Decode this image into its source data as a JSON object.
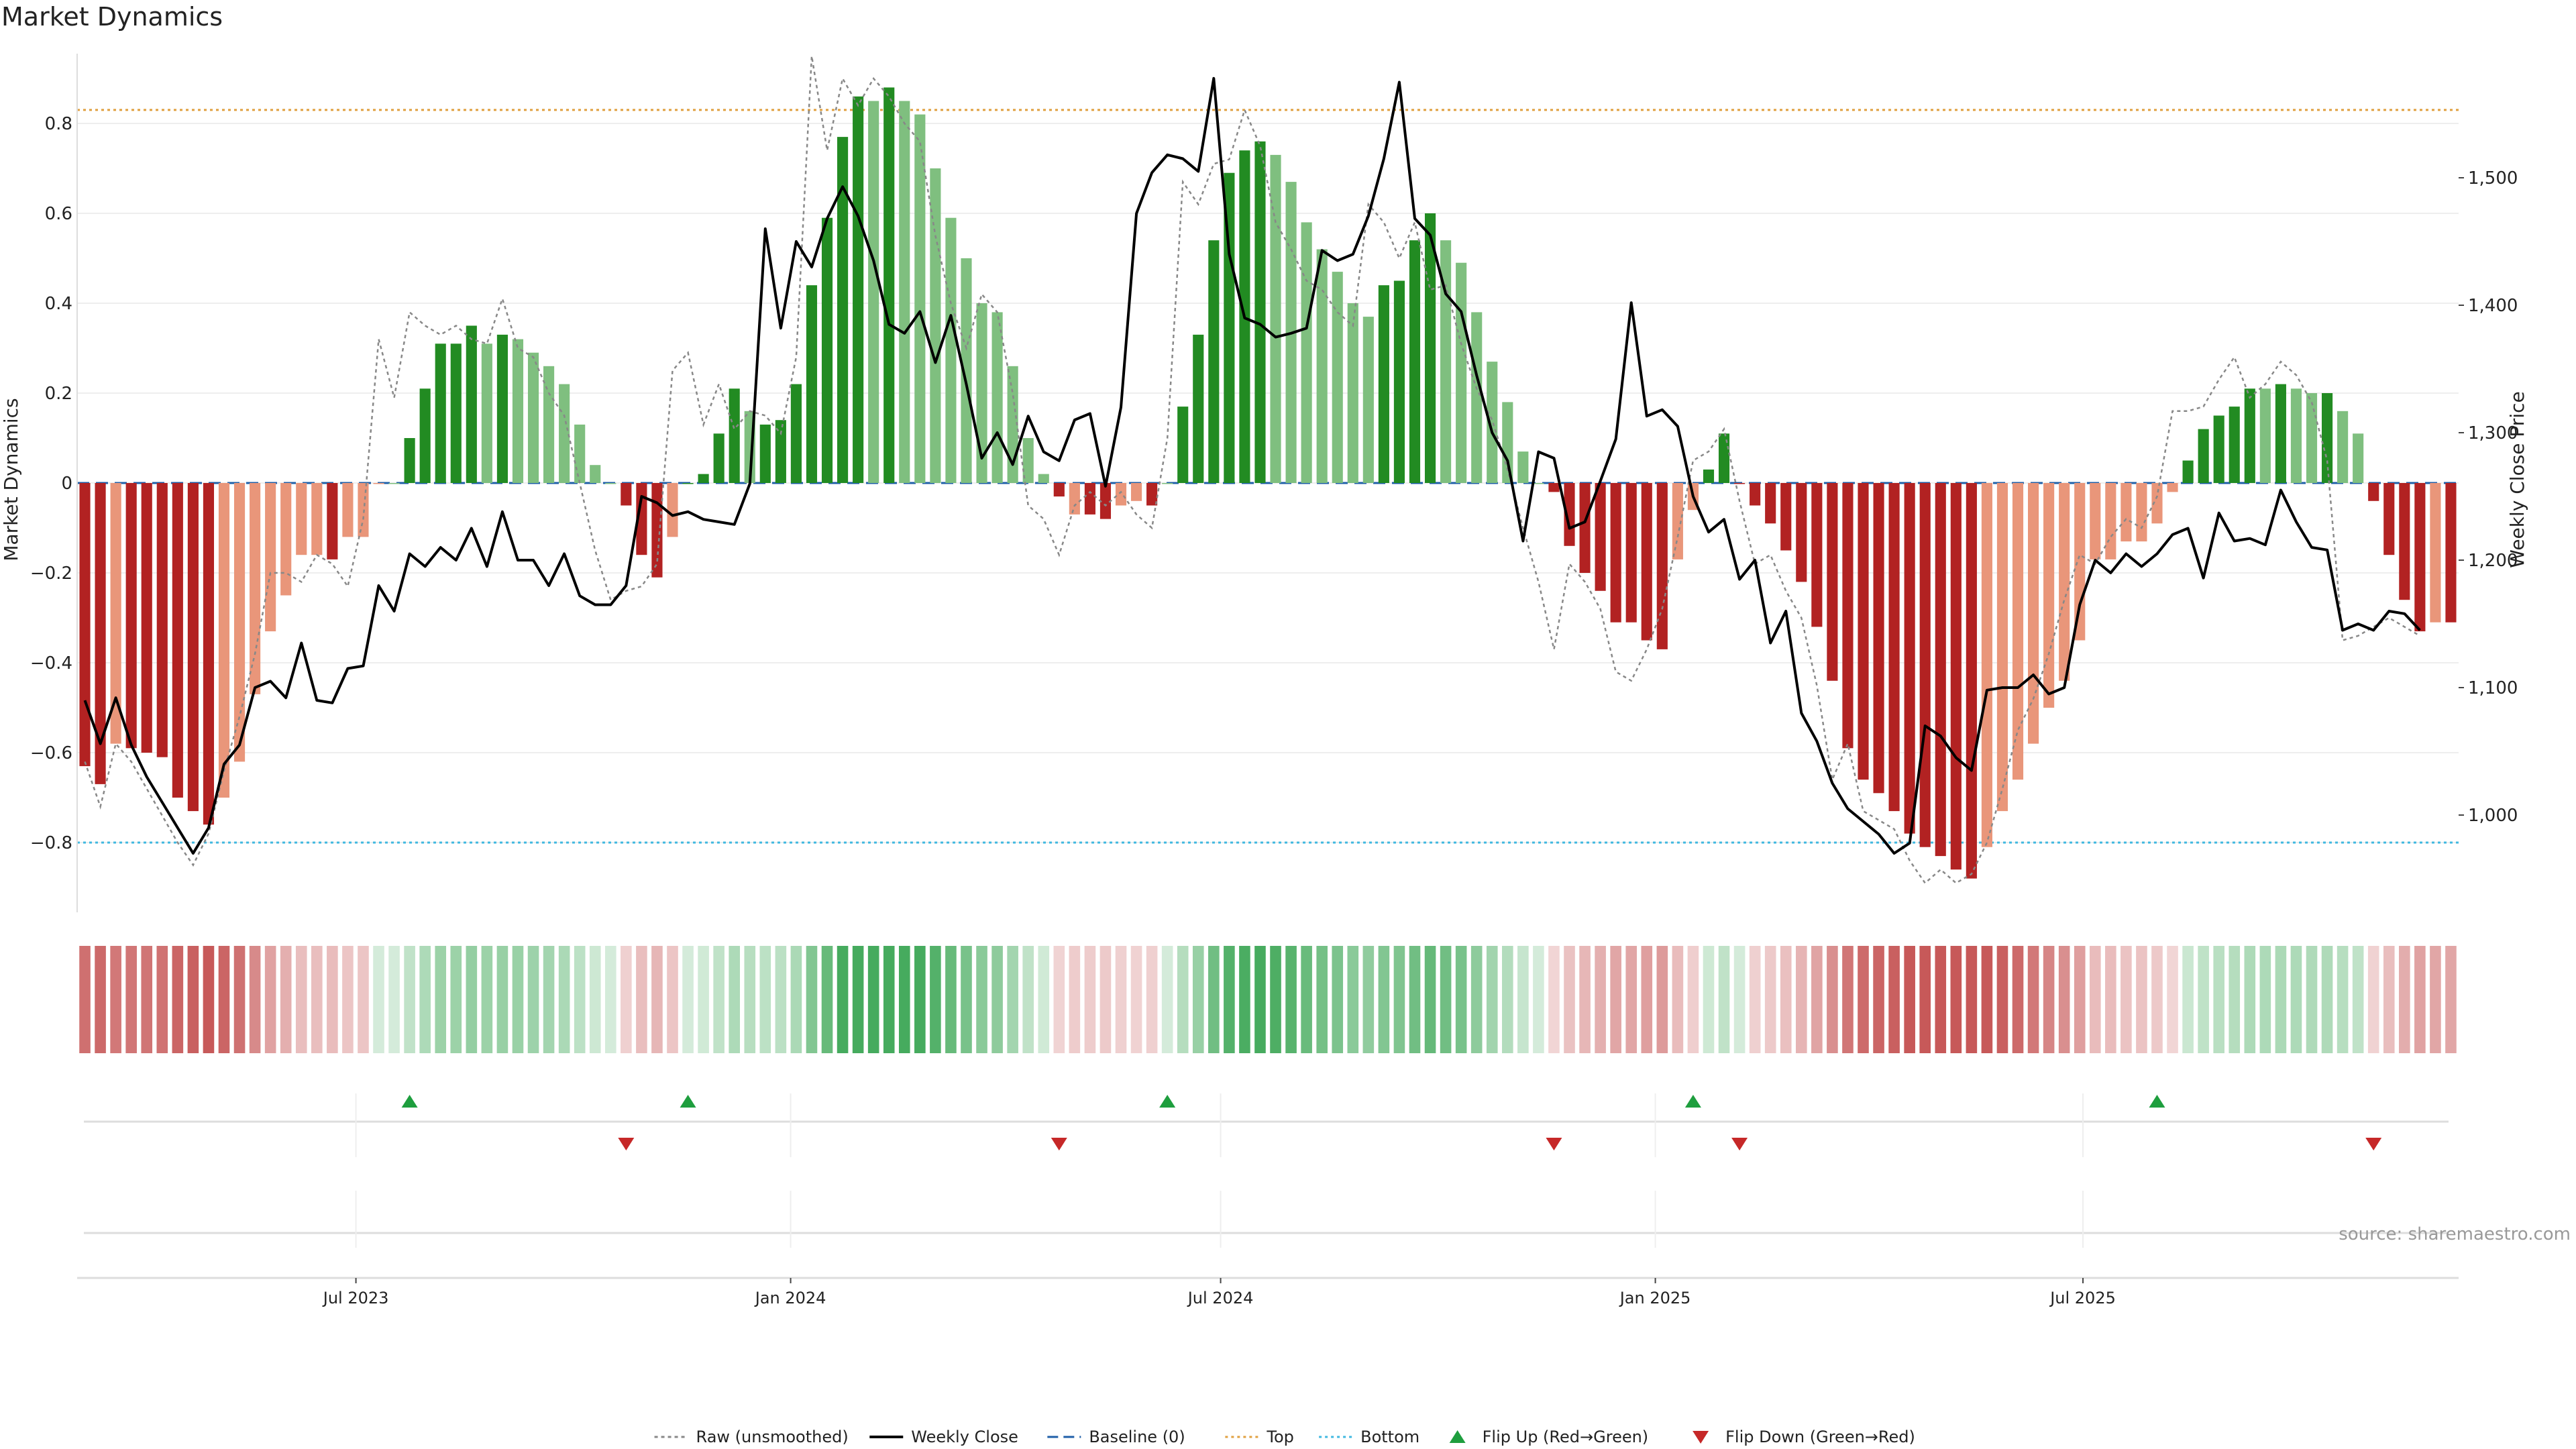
{
  "chart_data": {
    "type": "bar",
    "title": "Market Dynamics",
    "ylabel": "Market Dynamics",
    "y2label": "Weekly Close Price",
    "source": "source: sharemaestro.com",
    "ylim": [
      -0.96,
      0.96
    ],
    "y2lim": [
      940,
      1600
    ],
    "yticks": [
      -0.8,
      -0.6,
      -0.4,
      -0.2,
      0,
      0.2,
      0.4,
      0.6,
      0.8
    ],
    "ytick_labels": [
      "−0.8",
      "−0.6",
      "−0.4",
      "−0.2",
      "0",
      "0.2",
      "0.4",
      "0.6",
      "0.8"
    ],
    "y2ticks": [
      1000,
      1100,
      1200,
      1300,
      1400,
      1500
    ],
    "y2tick_labels": [
      "1,000",
      "1,100",
      "1,200",
      "1,300",
      "1,400",
      "1,500"
    ],
    "x_start_date": "2023-03-05",
    "x_end_date": "2025-12-07",
    "x_ticks": [
      {
        "date": "2023-07-01",
        "label": "Jul 2023"
      },
      {
        "date": "2024-01-01",
        "label": "Jan 2024"
      },
      {
        "date": "2024-07-01",
        "label": "Jul 2024"
      },
      {
        "date": "2025-01-01",
        "label": "Jan 2025"
      },
      {
        "date": "2025-07-01",
        "label": "Jul 2025"
      }
    ],
    "top_level": 0.83,
    "bottom_level": -0.8,
    "grid": true,
    "legend_position": "bottom-center",
    "colors": {
      "strong_up": "#228b22",
      "weak_up": "#7fbf7f",
      "strong_down": "#b22222",
      "weak_down": "#e9967a",
      "close": "#000000",
      "raw": "#888888",
      "baseline": "#1f5fa8",
      "top": "#e0a040",
      "bottom": "#40b8e0",
      "flip_up": "#1e9e3e",
      "flip_down": "#c62828"
    },
    "state_codes": "SD = strong down, WD = weak down, SU = strong up, WU = weak up",
    "series": [
      {
        "name": "Market Dynamics",
        "values": [
          -0.63,
          -0.67,
          -0.58,
          -0.59,
          -0.6,
          -0.61,
          -0.7,
          -0.73,
          -0.76,
          -0.7,
          -0.62,
          -0.47,
          -0.33,
          -0.25,
          -0.16,
          -0.16,
          -0.17,
          -0.12,
          -0.12,
          0,
          0.0,
          0.1,
          0.21,
          0.31,
          0.31,
          0.35,
          0.31,
          0.33,
          0.32,
          0.29,
          0.26,
          0.22,
          0.13,
          0.04,
          0.0,
          -0.05,
          -0.16,
          -0.21,
          -0.12,
          0.0,
          0.02,
          0.11,
          0.21,
          0.16,
          0.13,
          0.14,
          0.22,
          0.44,
          0.59,
          0.77,
          0.86,
          0.85,
          0.88,
          0.85,
          0.82,
          0.7,
          0.59,
          0.5,
          0.4,
          0.38,
          0.26,
          0.1,
          0.02,
          -0.03,
          -0.07,
          -0.07,
          -0.08,
          -0.05,
          -0.04,
          -0.05,
          0.0,
          0.17,
          0.33,
          0.54,
          0.69,
          0.74,
          0.76,
          0.73,
          0.67,
          0.58,
          0.52,
          0.47,
          0.4,
          0.37,
          0.44,
          0.45,
          0.54,
          0.6,
          0.54,
          0.49,
          0.38,
          0.27,
          0.18,
          0.07,
          0.0,
          -0.02,
          -0.14,
          -0.2,
          -0.24,
          -0.31,
          -0.31,
          -0.35,
          -0.37,
          -0.17,
          -0.06,
          0.03,
          0.11,
          0.0,
          -0.05,
          -0.09,
          -0.15,
          -0.22,
          -0.32,
          -0.44,
          -0.59,
          -0.66,
          -0.69,
          -0.73,
          -0.78,
          -0.81,
          -0.83,
          -0.86,
          -0.88,
          -0.81,
          -0.73,
          -0.66,
          -0.58,
          -0.5,
          -0.44,
          -0.35,
          -0.17,
          -0.17,
          -0.13,
          -0.13,
          -0.09,
          -0.02,
          0.05,
          0.12,
          0.15,
          0.17,
          0.21,
          0.21,
          0.22,
          0.21,
          0.2,
          0.2,
          0.16,
          0.11,
          -0.04,
          -0.16,
          -0.26,
          -0.33,
          -0.31,
          -0.31
        ],
        "states": "SD,SD,WD,SD,SD,SD,SD,SD,SD,WD,WD,WD,WD,WD,WD,WD,SD,WD,WD,WD,WU,SU,SU,SU,SU,SU,WU,SU,WU,WU,WU,WU,WU,WU,WU,SD,SD,SD,WD,SU,SU,SU,SU,WU,SU,SU,SU,SU,SU,SU,SU,WU,SU,WU,WU,WU,WU,WU,WU,WU,WU,WU,WU,SD,WD,SD,SD,WD,WD,SD,WU,SU,SU,SU,SU,SU,SU,WU,WU,WU,WU,WU,WU,WU,SU,SU,SU,SU,WU,WU,WU,WU,WU,WU,WU,SD,SD,SD,SD,SD,SD,SD,SD,WD,WD,SU,SU,SD,SD,SD,SD,SD,SD,SD,SD,SD,SD,SD,SD,SD,SD,SD,SD,WD,WD,WD,WD,WD,WD,WD,WD,WD,WD,WD,WD,WD,SU,SU,SU,SU,SU,WU,SU,WU,WU,SU,WU,WU,SD,SD,SD,SD,WD,SD"
      },
      {
        "name": "Raw (unsmoothed)",
        "values": [
          -0.62,
          -0.72,
          -0.58,
          -0.62,
          -0.68,
          -0.74,
          -0.8,
          -0.85,
          -0.78,
          -0.64,
          -0.52,
          -0.38,
          -0.2,
          -0.2,
          -0.22,
          -0.16,
          -0.18,
          -0.23,
          -0.08,
          0.32,
          0.19,
          0.38,
          0.35,
          0.33,
          0.35,
          0.32,
          0.31,
          0.41,
          0.3,
          0.28,
          0.2,
          0.15,
          0.0,
          -0.15,
          -0.26,
          -0.24,
          -0.23,
          -0.18,
          0.25,
          0.29,
          0.13,
          0.22,
          0.12,
          0.16,
          0.15,
          0.11,
          0.28,
          0.95,
          0.74,
          0.9,
          0.84,
          0.9,
          0.86,
          0.8,
          0.76,
          0.55,
          0.4,
          0.3,
          0.42,
          0.38,
          0.2,
          -0.05,
          -0.08,
          -0.16,
          -0.05,
          -0.02,
          -0.05,
          -0.02,
          -0.07,
          -0.1,
          0.1,
          0.67,
          0.62,
          0.71,
          0.72,
          0.83,
          0.75,
          0.58,
          0.52,
          0.45,
          0.43,
          0.38,
          0.35,
          0.62,
          0.58,
          0.5,
          0.58,
          0.43,
          0.44,
          0.31,
          0.21,
          0.14,
          0.03,
          -0.1,
          -0.22,
          -0.37,
          -0.18,
          -0.22,
          -0.28,
          -0.42,
          -0.44,
          -0.37,
          -0.28,
          -0.12,
          0.05,
          0.07,
          0.12,
          -0.04,
          -0.18,
          -0.16,
          -0.24,
          -0.3,
          -0.45,
          -0.66,
          -0.58,
          -0.73,
          -0.75,
          -0.77,
          -0.84,
          -0.89,
          -0.86,
          -0.89,
          -0.87,
          -0.8,
          -0.68,
          -0.55,
          -0.48,
          -0.38,
          -0.26,
          -0.16,
          -0.18,
          -0.12,
          -0.08,
          -0.1,
          -0.03,
          0.16,
          0.16,
          0.17,
          0.23,
          0.28,
          0.19,
          0.22,
          0.27,
          0.24,
          0.18,
          0.05,
          -0.35,
          -0.34,
          -0.32,
          -0.3,
          -0.32,
          -0.34
        ]
      },
      {
        "name": "Weekly Close",
        "values": [
          1090,
          1056,
          1092,
          1055,
          1030,
          1010,
          990,
          970,
          990,
          1040,
          1055,
          1100,
          1105,
          1092,
          1135,
          1090,
          1088,
          1115,
          1117,
          1180,
          1160,
          1205,
          1195,
          1210,
          1200,
          1225,
          1195,
          1238,
          1200,
          1200,
          1180,
          1205,
          1172,
          1165,
          1165,
          1180,
          1250,
          1245,
          1235,
          1238,
          1232,
          1230,
          1228,
          1260,
          1460,
          1382,
          1450,
          1430,
          1468,
          1493,
          1470,
          1435,
          1385,
          1378,
          1395,
          1355,
          1392,
          1338,
          1280,
          1300,
          1275,
          1313,
          1285,
          1278,
          1310,
          1315,
          1258,
          1320,
          1472,
          1504,
          1518,
          1515,
          1505,
          1578,
          1440,
          1390,
          1385,
          1375,
          1378,
          1382,
          1443,
          1435,
          1440,
          1470,
          1515,
          1575,
          1468,
          1455,
          1409,
          1395,
          1345,
          1300,
          1278,
          1215,
          1285,
          1280,
          1225,
          1230,
          1262,
          1295,
          1402,
          1313,
          1318,
          1305,
          1250,
          1222,
          1232,
          1185,
          1200,
          1135,
          1160,
          1080,
          1058,
          1025,
          1005,
          995,
          985,
          970,
          978,
          1070,
          1062,
          1045,
          1035,
          1098,
          1100,
          1100,
          1110,
          1095,
          1100,
          1165,
          1200,
          1190,
          1205,
          1195,
          1205,
          1220,
          1225,
          1186,
          1237,
          1215,
          1217,
          1212,
          1255,
          1230,
          1210,
          1208,
          1145,
          1150,
          1145,
          1160,
          1158,
          1145
        ]
      }
    ],
    "flip_up_indices": [
      21,
      39,
      70,
      104,
      134
    ],
    "flip_down_indices": [
      35,
      63,
      95,
      107,
      148
    ],
    "legend": [
      {
        "label": "Raw (unsmoothed)",
        "style": "dotted-gray"
      },
      {
        "label": "Weekly Close",
        "style": "solid-black"
      },
      {
        "label": "Baseline (0)",
        "style": "dashed-blue"
      },
      {
        "label": "Top",
        "style": "dotted-orange"
      },
      {
        "label": "Bottom",
        "style": "dotted-cyan"
      },
      {
        "label": "Flip Up (Red→Green)",
        "style": "triangle-up-green"
      },
      {
        "label": "Flip Down (Green→Red)",
        "style": "triangle-down-red"
      }
    ]
  }
}
